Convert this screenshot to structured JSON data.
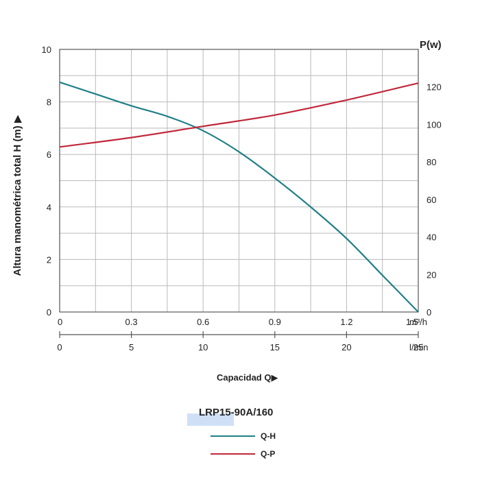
{
  "chart_data": {
    "type": "line",
    "title": "LRP15-90A/160",
    "ylabel": "Altura manométrica total H   (m) ▶",
    "y2label": "P(w)",
    "xlabel": "Capacidad Q▶",
    "x_unit_top": "m³/h",
    "x_unit_bottom": "l/min",
    "xlim_m3h": [
      0,
      1.5
    ],
    "ylim": [
      0,
      10
    ],
    "y2lim": [
      0,
      140
    ],
    "grid": true,
    "legend_position": "bottom-center",
    "y_ticks": [
      "0",
      "2",
      "4",
      "6",
      "8",
      "10"
    ],
    "y2_ticks": [
      "0",
      "20",
      "40",
      "60",
      "80",
      "100",
      "120"
    ],
    "x_ticks_top": [
      "0",
      "0.3",
      "0.6",
      "0.9",
      "1.2",
      "1.5"
    ],
    "x_ticks_bottom": [
      "0",
      "5",
      "10",
      "15",
      "20",
      "25"
    ],
    "series": [
      {
        "name": "Q-H",
        "axis": "left",
        "color": "#1f7f86",
        "x": [
          0,
          0.15,
          0.3,
          0.45,
          0.6,
          0.75,
          0.9,
          1.05,
          1.2,
          1.35,
          1.5
        ],
        "y": [
          8.75,
          8.3,
          7.85,
          7.45,
          6.9,
          6.1,
          5.1,
          4.0,
          2.8,
          1.4,
          0.0
        ]
      },
      {
        "name": "Q-P",
        "axis": "right",
        "color": "#c0273a",
        "x": [
          0,
          0.3,
          0.6,
          0.9,
          1.2,
          1.5
        ],
        "y": [
          88,
          93,
          99,
          105,
          113,
          122
        ]
      }
    ]
  }
}
